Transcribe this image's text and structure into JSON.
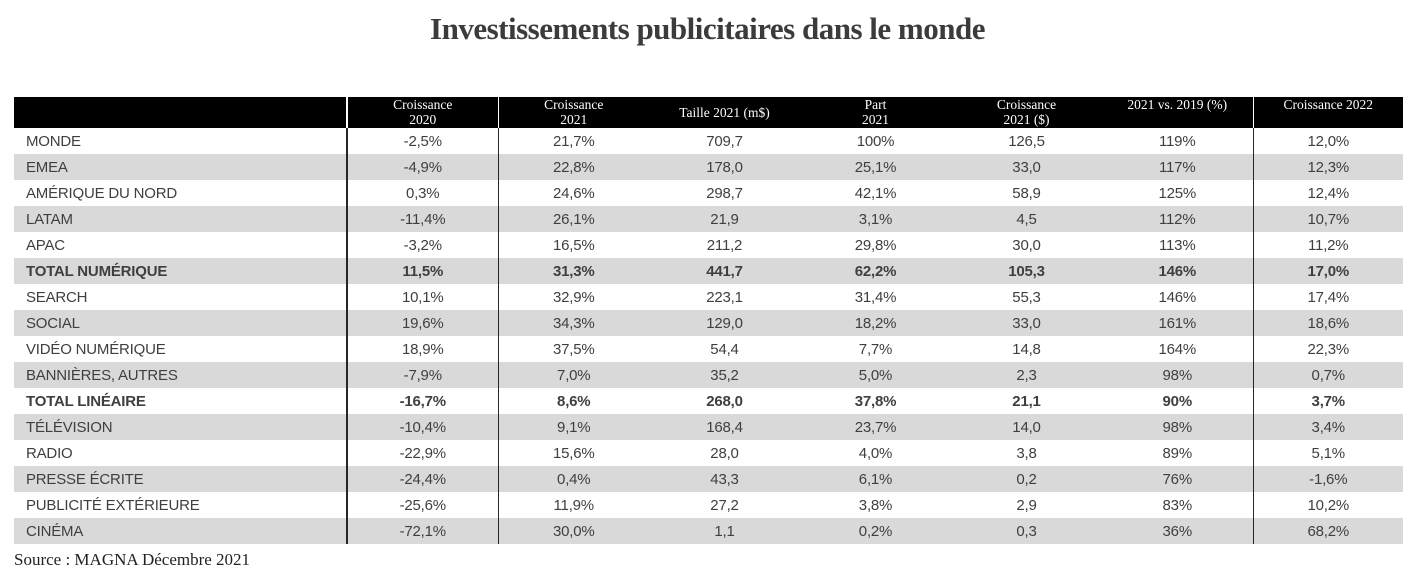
{
  "chart_data": {
    "type": "table",
    "title": "Investissements publicitaires dans le monde",
    "source": "Source : MAGNA Décembre 2021",
    "columns": [
      {
        "label": "",
        "lines": [
          ""
        ],
        "valign": "middle"
      },
      {
        "label": "Croissance 2020",
        "lines": [
          "Croissance",
          "2020"
        ],
        "valign": "top"
      },
      {
        "label": "Croissance 2021",
        "lines": [
          "Croissance",
          "2021"
        ],
        "valign": "top"
      },
      {
        "label": "Taille 2021 (m$)",
        "lines": [
          "Taille 2021 (m$)"
        ],
        "valign": "middle"
      },
      {
        "label": "Part 2021",
        "lines": [
          "Part",
          "2021"
        ],
        "valign": "top"
      },
      {
        "label": "Croissance 2021 ($)",
        "lines": [
          "Croissance",
          "2021 ($)"
        ],
        "valign": "top"
      },
      {
        "label": "2021 vs. 2019 (%)",
        "lines": [
          "2021 vs. 2019 (%)"
        ],
        "valign": "top"
      },
      {
        "label": "Croissance 2022",
        "lines": [
          "Croissance 2022"
        ],
        "valign": "top"
      }
    ],
    "rows": [
      {
        "label": "MONDE",
        "bold": false,
        "values": [
          "-2,5%",
          "21,7%",
          "709,7",
          "100%",
          "126,5",
          "119%",
          "12,0%"
        ]
      },
      {
        "label": "EMEA",
        "bold": false,
        "values": [
          "-4,9%",
          "22,8%",
          "178,0",
          "25,1%",
          "33,0",
          "117%",
          "12,3%"
        ]
      },
      {
        "label": "AMÉRIQUE DU NORD",
        "bold": false,
        "values": [
          "0,3%",
          "24,6%",
          "298,7",
          "42,1%",
          "58,9",
          "125%",
          "12,4%"
        ]
      },
      {
        "label": "LATAM",
        "bold": false,
        "values": [
          "-11,4%",
          "26,1%",
          "21,9",
          "3,1%",
          "4,5",
          "112%",
          "10,7%"
        ]
      },
      {
        "label": "APAC",
        "bold": false,
        "values": [
          "-3,2%",
          "16,5%",
          "211,2",
          "29,8%",
          "30,0",
          "113%",
          "11,2%"
        ]
      },
      {
        "label": "TOTAL NUMÉRIQUE",
        "bold": true,
        "values": [
          "11,5%",
          "31,3%",
          "441,7",
          "62,2%",
          "105,3",
          "146%",
          "17,0%"
        ]
      },
      {
        "label": "SEARCH",
        "bold": false,
        "values": [
          "10,1%",
          "32,9%",
          "223,1",
          "31,4%",
          "55,3",
          "146%",
          "17,4%"
        ]
      },
      {
        "label": "SOCIAL",
        "bold": false,
        "values": [
          "19,6%",
          "34,3%",
          "129,0",
          "18,2%",
          "33,0",
          "161%",
          "18,6%"
        ]
      },
      {
        "label": "VIDÉO NUMÉRIQUE",
        "bold": false,
        "values": [
          "18,9%",
          "37,5%",
          "54,4",
          "7,7%",
          "14,8",
          "164%",
          "22,3%"
        ]
      },
      {
        "label": "BANNIÈRES, AUTRES",
        "bold": false,
        "values": [
          "-7,9%",
          "7,0%",
          "35,2",
          "5,0%",
          "2,3",
          "98%",
          "0,7%"
        ]
      },
      {
        "label": "TOTAL LINÉAIRE",
        "bold": true,
        "values": [
          "-16,7%",
          "8,6%",
          "268,0",
          "37,8%",
          "21,1",
          "90%",
          "3,7%"
        ]
      },
      {
        "label": "TÉLÉVISION",
        "bold": false,
        "values": [
          "-10,4%",
          "9,1%",
          "168,4",
          "23,7%",
          "14,0",
          "98%",
          "3,4%"
        ]
      },
      {
        "label": "RADIO",
        "bold": false,
        "values": [
          "-22,9%",
          "15,6%",
          "28,0",
          "4,0%",
          "3,8",
          "89%",
          "5,1%"
        ]
      },
      {
        "label": "PRESSE ÉCRITE",
        "bold": false,
        "values": [
          "-24,4%",
          "0,4%",
          "43,3",
          "6,1%",
          "0,2",
          "76%",
          "-1,6%"
        ]
      },
      {
        "label": "PUBLICITÉ EXTÉRIEURE",
        "bold": false,
        "values": [
          "-25,6%",
          "11,9%",
          "27,2",
          "3,8%",
          "2,9",
          "83%",
          "10,2%"
        ]
      },
      {
        "label": "CINÉMA",
        "bold": false,
        "values": [
          "-72,1%",
          "30,0%",
          "1,1",
          "0,2%",
          "0,3",
          "36%",
          "68,2%"
        ]
      }
    ],
    "layout": {
      "stripe_pattern": "alternating, first row white",
      "divider_columns": [
        1,
        2,
        7
      ],
      "grid": "off"
    },
    "colors": {
      "header_bg": "#000000",
      "header_text": "#ffffff",
      "stripe": "#d9d9d9",
      "body_text": "#3f3f3f",
      "divider": "#262626",
      "title_color": "#3b3b3b"
    }
  }
}
